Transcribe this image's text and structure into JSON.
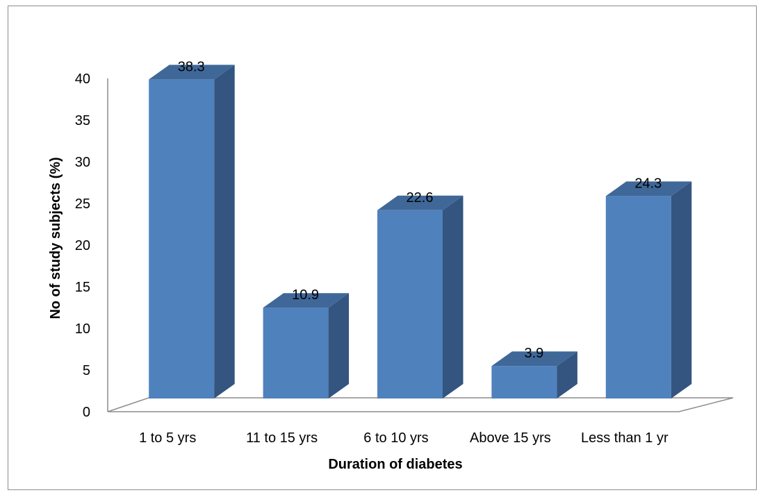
{
  "chart_data": {
    "type": "bar",
    "style": "3d-clustered-column",
    "categories": [
      "1 to 5 yrs",
      "11 to 15 yrs",
      "6 to 10 yrs",
      "Above 15 yrs",
      "Less than 1 yr"
    ],
    "values": [
      38.3,
      10.9,
      22.6,
      3.9,
      24.3
    ],
    "data_labels": [
      "38.3",
      "10.9",
      "22.6",
      "3.9",
      "24.3"
    ],
    "xlabel": "Duration of diabetes",
    "ylabel": "No of study subjects (%)",
    "ylim": [
      0,
      40
    ],
    "yticks": [
      0,
      5,
      10,
      15,
      20,
      25,
      30,
      35,
      40
    ],
    "grid": false,
    "legend": "none",
    "colors": {
      "bar_front": "#4f81bd",
      "bar_side": "#33557f",
      "bar_top": "#3f6899",
      "floor": "#8c8c8c"
    }
  }
}
